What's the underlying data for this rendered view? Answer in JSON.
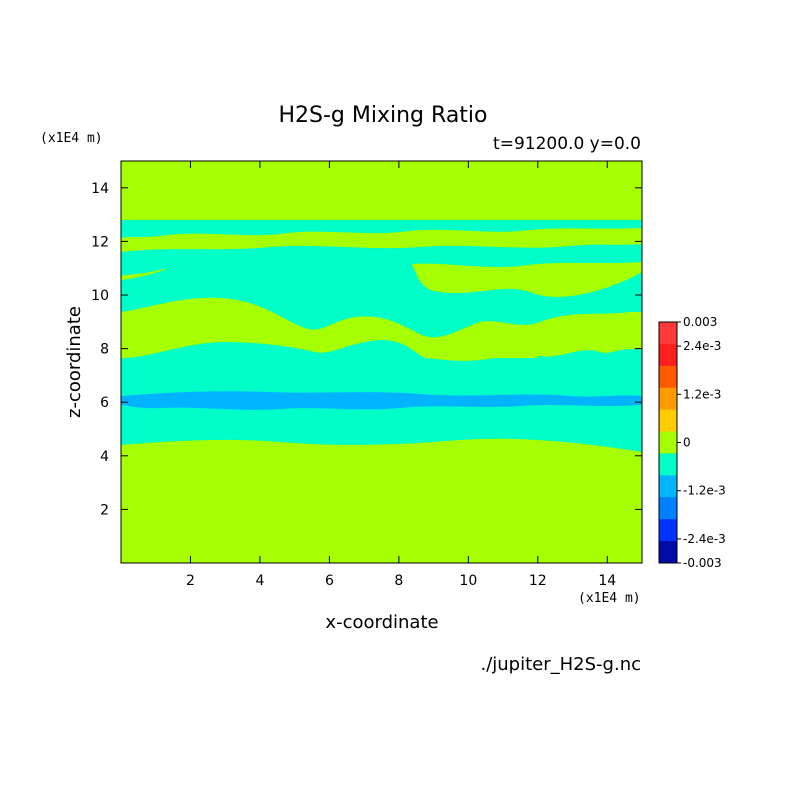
{
  "chart_data": {
    "type": "heatmap",
    "title": "H2S-g Mixing Ratio",
    "subtitle": "t=91200.0 y=0.0",
    "xlabel": "x-coordinate",
    "ylabel": "z-coordinate",
    "x_unit": "(x1E4 m)",
    "y_unit": "(x1E4 m)",
    "xlim": [
      0,
      15
    ],
    "ylim": [
      0,
      15
    ],
    "xticks": [
      2,
      4,
      6,
      8,
      10,
      12,
      14
    ],
    "yticks": [
      2,
      4,
      6,
      8,
      10,
      12,
      14
    ],
    "source_file": "./jupiter_H2S-g.nc",
    "colorbar": {
      "range": [
        -0.003,
        0.003
      ],
      "labels": [
        "0.003",
        "2.4e-3",
        "1.2e-3",
        "0",
        "-1.2e-3",
        "-2.4e-3",
        "-0.003"
      ],
      "label_values": [
        0.003,
        0.0024,
        0.0012,
        0,
        -0.0012,
        -0.0024,
        -0.003
      ],
      "colors": [
        "#ff3a3a",
        "#ff1f1f",
        "#ff5a00",
        "#ff9a00",
        "#ffcc00",
        "#a6ff00",
        "#00ffc8",
        "#00b4ff",
        "#0080ff",
        "#0033ff",
        "#000aa8"
      ]
    },
    "regions": [
      {
        "name": "level-zero",
        "value": 0,
        "color": "#a6ff00",
        "z_range": [
          0,
          4.4
        ]
      },
      {
        "name": "level-neg-low",
        "value": -0.0006,
        "color": "#00ffc8",
        "z_range": [
          4.4,
          5.9
        ]
      },
      {
        "name": "level-neg-mid",
        "value": -0.0012,
        "color": "#00b4ff",
        "z_range": [
          5.9,
          6.3
        ]
      },
      {
        "name": "level-neg-low-upper",
        "value": -0.0006,
        "color": "#00ffc8",
        "z_range": [
          6.3,
          8.2
        ]
      },
      {
        "name": "level-mixed",
        "value": 0,
        "color": "#a6ff00",
        "z_range": [
          8.2,
          12.8
        ]
      },
      {
        "name": "level-top",
        "value": 0,
        "color": "#a6ff00",
        "z_range": [
          12.8,
          15
        ]
      }
    ]
  }
}
